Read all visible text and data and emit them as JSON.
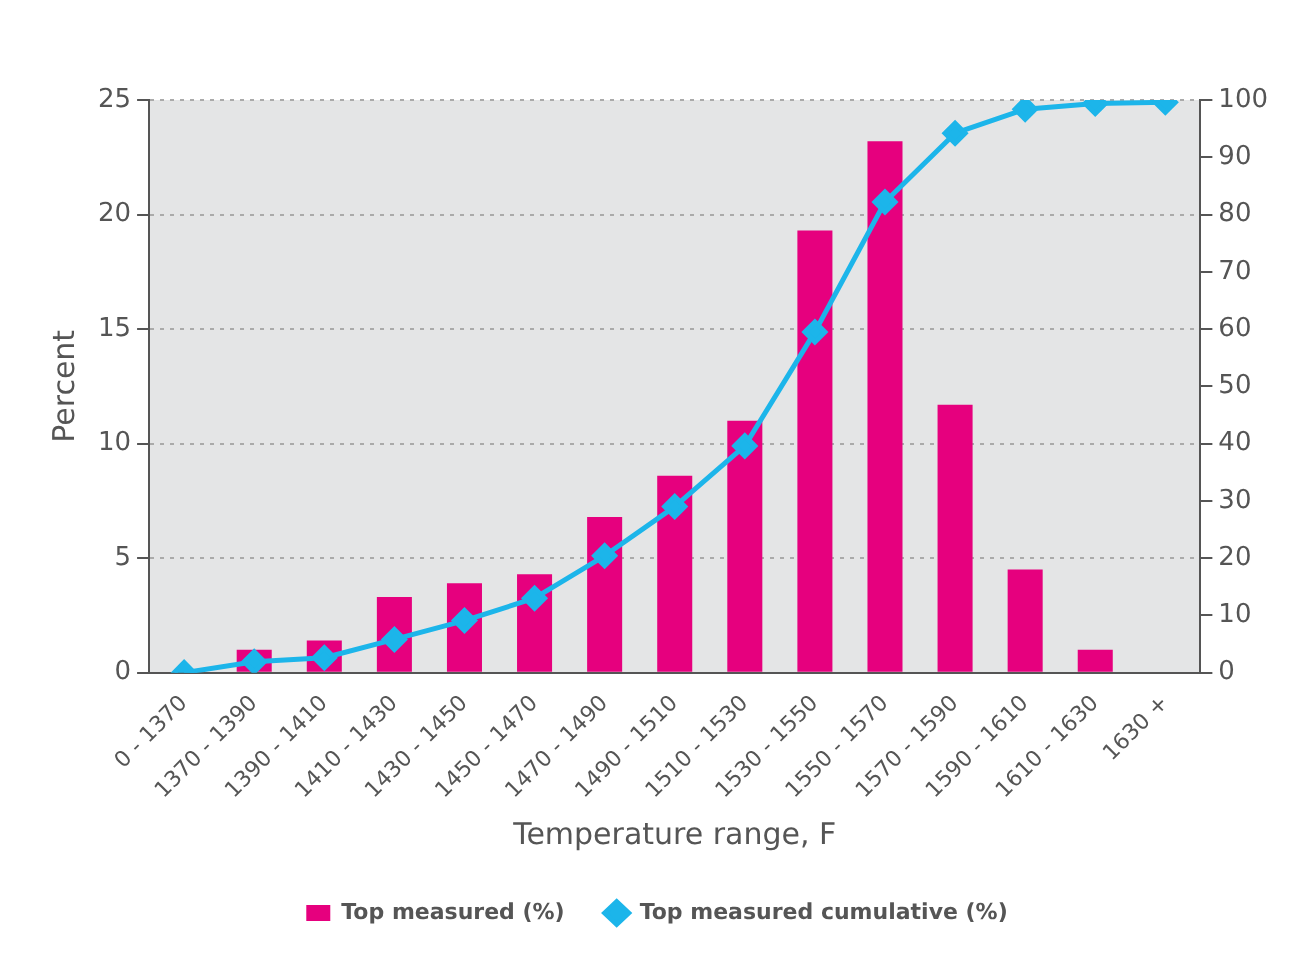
{
  "chart_data": {
    "type": "bar",
    "xlabel": "Temperature range, F",
    "ylabel": "Percent",
    "categories": [
      "0 - 1370",
      "1370 - 1390",
      "1390 - 1410",
      "1410 - 1430",
      "1430 - 1450",
      "1450 - 1470",
      "1470 - 1490",
      "1490 - 1510",
      "1510 - 1530",
      "1530 - 1550",
      "1550 - 1570",
      "1570 - 1590",
      "1590 - 1610",
      "1610 - 1630",
      "1630 +"
    ],
    "series": [
      {
        "name": "Top measured (%)",
        "color": "#e6007e",
        "values": [
          0,
          1.0,
          1.4,
          3.3,
          3.9,
          4.3,
          6.8,
          8.6,
          11.0,
          19.3,
          23.2,
          11.7,
          4.5,
          1.0,
          0
        ]
      },
      {
        "name": "Top measured cumulative (%)",
        "type": "line",
        "axis": "y2",
        "color": "#1cb5ea",
        "marker": "diamond",
        "values": [
          0,
          1.9,
          2.6,
          5.8,
          9.1,
          13,
          20.4,
          29,
          39.6,
          59.5,
          82.2,
          94.2,
          98.4,
          99.4,
          99.6
        ]
      }
    ],
    "ylim": [
      0,
      25
    ],
    "yticks": [
      0,
      5,
      10,
      15,
      20,
      25
    ],
    "y2lim": [
      0,
      100
    ],
    "y2ticks": [
      0,
      10,
      20,
      30,
      40,
      50,
      60,
      70,
      80,
      90,
      100
    ],
    "grid": "y",
    "legend": "bottom"
  }
}
